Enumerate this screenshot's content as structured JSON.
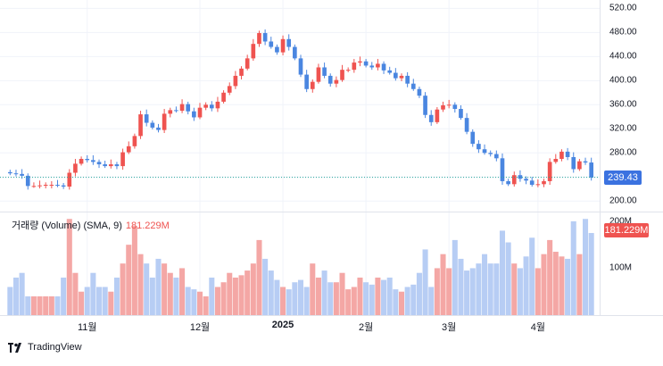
{
  "chart_data": {
    "type": "candlestick",
    "price_axis": {
      "ticks": [
        "520.00",
        "480.00",
        "440.00",
        "400.00",
        "360.00",
        "320.00",
        "280.00",
        "240.00",
        "200.00"
      ],
      "tick_values": [
        520,
        480,
        440,
        400,
        360,
        320,
        280,
        240,
        200
      ],
      "range": [
        184,
        528
      ]
    },
    "volume_axis": {
      "ticks": [
        "200M",
        "100M"
      ],
      "tick_values": [
        200,
        100
      ],
      "range": [
        0,
        215
      ]
    },
    "x_axis_labels": [
      "11월",
      "12월",
      "2025",
      "2월",
      "3월",
      "4월"
    ],
    "x_axis_label_index": [
      13,
      32,
      46,
      60,
      74,
      89
    ],
    "last_price": "239.43",
    "last_price_value": 239.43,
    "volume_legend": {
      "label": "거래량 (Volume) (SMA, 9)",
      "value": "181.229M",
      "last_volume_value": 181.229
    },
    "colors": {
      "up": "#ef5350",
      "down": "#4a86e0",
      "up_vol": "#f4a7a5",
      "down_vol": "#b7cdf4",
      "grid": "#f0f3fa",
      "last_line": "#26a69a",
      "tag_bg": "#3b72e0",
      "vol_tag_bg": "#ef5350"
    },
    "closes": [
      246,
      245,
      242,
      225,
      225,
      226,
      227,
      227,
      226,
      224,
      247,
      262,
      270,
      268,
      265,
      261,
      258,
      261,
      258,
      281,
      291,
      308,
      344,
      330,
      322,
      318,
      345,
      351,
      350,
      361,
      349,
      339,
      355,
      360,
      354,
      365,
      380,
      391,
      408,
      420,
      437,
      461,
      479,
      465,
      456,
      447,
      469,
      456,
      437,
      410,
      386,
      398,
      422,
      408,
      395,
      401,
      418,
      418,
      430,
      432,
      425,
      422,
      428,
      417,
      413,
      404,
      408,
      395,
      386,
      375,
      343,
      331,
      352,
      359,
      360,
      353,
      338,
      315,
      295,
      286,
      280,
      278,
      271,
      233,
      228,
      243,
      237,
      234,
      227,
      228,
      233,
      265,
      270,
      282,
      273,
      253,
      266,
      264,
      239
    ],
    "volumes": [
      60,
      80,
      90,
      40,
      40,
      40,
      40,
      40,
      40,
      80,
      205,
      90,
      50,
      60,
      90,
      60,
      60,
      50,
      80,
      110,
      150,
      190,
      130,
      110,
      80,
      120,
      110,
      90,
      80,
      100,
      60,
      55,
      50,
      40,
      80,
      60,
      70,
      90,
      80,
      85,
      95,
      110,
      160,
      120,
      95,
      75,
      60,
      55,
      70,
      75,
      60,
      110,
      80,
      95,
      70,
      70,
      90,
      55,
      60,
      80,
      70,
      65,
      80,
      75,
      80,
      55,
      50,
      60,
      65,
      90,
      140,
      60,
      100,
      130,
      100,
      160,
      120,
      95,
      100,
      110,
      130,
      110,
      110,
      180,
      155,
      110,
      100,
      125,
      165,
      100,
      130,
      160,
      135,
      125,
      120,
      200,
      130,
      205,
      175
    ]
  },
  "branding": {
    "name": "TradingView"
  }
}
